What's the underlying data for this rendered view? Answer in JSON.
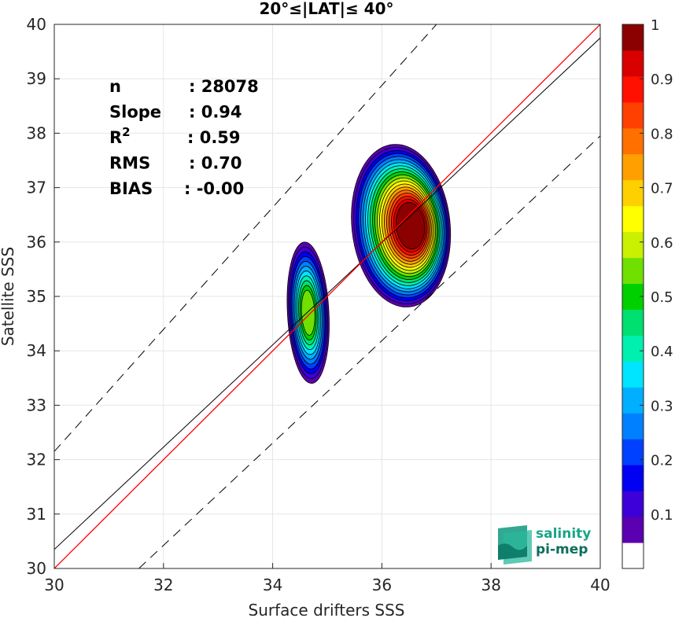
{
  "chart_data": {
    "type": "heatmap",
    "title": "20°≤|LAT|≤ 40°",
    "xlabel": "Surface drifters SSS",
    "ylabel": "Satellite SSS",
    "xlim": [
      30,
      40
    ],
    "ylim": [
      30,
      40
    ],
    "xticks": [
      "30",
      "32",
      "34",
      "36",
      "38",
      "40"
    ],
    "yticks": [
      "30",
      "31",
      "32",
      "33",
      "34",
      "35",
      "36",
      "37",
      "38",
      "39",
      "40"
    ],
    "grid": true,
    "stats": [
      {
        "label": "n",
        "sep": ":",
        "value": "28078"
      },
      {
        "label": "Slope",
        "sep": ":",
        "value": "0.94"
      },
      {
        "label": "R",
        "sup": "2",
        "sep": ":",
        "value": "0.59"
      },
      {
        "label": "RMS",
        "sep": ":",
        "value": "0.70"
      },
      {
        "label": "BIAS",
        "sep": ":",
        "value": "-0.00"
      }
    ],
    "lines": {
      "one_to_one": {
        "x": [
          30,
          40
        ],
        "y": [
          30,
          40
        ],
        "color": "#ff0000"
      },
      "fit": {
        "x": [
          30,
          40
        ],
        "y": [
          30.35,
          39.75
        ],
        "color": "#000000"
      },
      "upper_bound": {
        "x": [
          30,
          37
        ],
        "y": [
          32.15,
          40
        ],
        "color": "#000000",
        "style": "dashed"
      },
      "lower_bound": {
        "x": [
          31.55,
          40
        ],
        "y": [
          30,
          37.95
        ],
        "color": "#000000",
        "style": "dashed"
      }
    },
    "density_clusters": [
      {
        "center_x": 34.65,
        "center_y": 34.7,
        "half_width": 0.38,
        "half_height": 1.3,
        "peak_level": 0.55
      },
      {
        "center_x": 36.35,
        "center_y": 36.3,
        "half_width": 0.9,
        "half_height": 1.5,
        "peak_level": 1.0
      }
    ],
    "colorbar": {
      "ticks": [
        "0.1",
        "0.2",
        "0.3",
        "0.4",
        "0.5",
        "0.6",
        "0.7",
        "0.8",
        "0.9",
        "1"
      ],
      "range": [
        0,
        1
      ],
      "colors": [
        "#ffffff",
        "#5b00b0",
        "#3d00d9",
        "#0000f2",
        "#0040ff",
        "#0080ff",
        "#00b0ff",
        "#00e5ff",
        "#00f0b0",
        "#00e070",
        "#00d000",
        "#70e000",
        "#c8f000",
        "#ffff00",
        "#ffd000",
        "#ffa000",
        "#ff7000",
        "#ff4000",
        "#ff1000",
        "#d90000",
        "#8b0000"
      ]
    }
  },
  "logo": {
    "line1": "salinity",
    "line2": "pi-mep"
  }
}
